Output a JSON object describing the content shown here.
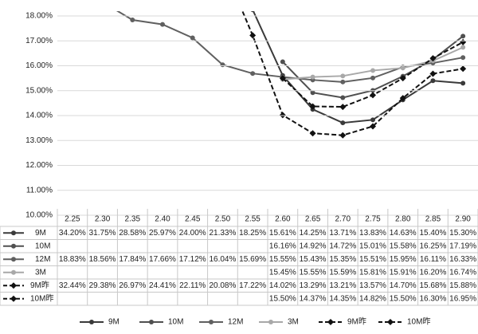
{
  "chart_data": {
    "type": "line",
    "categories": [
      "2.25",
      "2.30",
      "2.35",
      "2.40",
      "2.45",
      "2.50",
      "2.55",
      "2.60",
      "2.65",
      "2.70",
      "2.75",
      "2.80",
      "2.85",
      "2.90"
    ],
    "ylim": [
      10,
      18
    ],
    "yticks": [
      {
        "value": 10,
        "label": "10.00%"
      },
      {
        "value": 11,
        "label": "11.00%"
      },
      {
        "value": 12,
        "label": "12.00%"
      },
      {
        "value": 13,
        "label": "13.00%"
      },
      {
        "value": 14,
        "label": "14.00%"
      },
      {
        "value": 15,
        "label": "15.00%"
      },
      {
        "value": 16,
        "label": "16.00%"
      },
      {
        "value": 17,
        "label": "17.00%"
      },
      {
        "value": 18,
        "label": "18.00%"
      }
    ],
    "grid": true,
    "legend": "bottom",
    "series": [
      {
        "name": "9M",
        "color": "#3a3a3a",
        "dashed": false,
        "values": [
          34.2,
          31.75,
          28.58,
          25.97,
          24.0,
          21.33,
          18.25,
          15.61,
          14.25,
          13.71,
          13.83,
          14.63,
          15.4,
          15.3
        ],
        "value_labels": [
          "34.20%",
          "31.75%",
          "28.58%",
          "25.97%",
          "24.00%",
          "21.33%",
          "18.25%",
          "15.61%",
          "14.25%",
          "13.71%",
          "13.83%",
          "14.63%",
          "15.40%",
          "15.30%"
        ]
      },
      {
        "name": "10M",
        "color": "#505050",
        "dashed": false,
        "values": [
          null,
          null,
          null,
          null,
          null,
          null,
          null,
          16.16,
          14.92,
          14.72,
          15.01,
          15.58,
          16.25,
          17.19
        ],
        "value_labels": [
          null,
          null,
          null,
          null,
          null,
          null,
          null,
          "16.16%",
          "14.92%",
          "14.72%",
          "15.01%",
          "15.58%",
          "16.25%",
          "17.19%"
        ]
      },
      {
        "name": "12M",
        "color": "#606060",
        "dashed": false,
        "values": [
          18.83,
          18.56,
          17.84,
          17.66,
          17.12,
          16.04,
          15.69,
          15.55,
          15.43,
          15.35,
          15.51,
          15.95,
          16.11,
          16.33
        ],
        "value_labels": [
          "18.83%",
          "18.56%",
          "17.84%",
          "17.66%",
          "17.12%",
          "16.04%",
          "15.69%",
          "15.55%",
          "15.43%",
          "15.35%",
          "15.51%",
          "15.95%",
          "16.11%",
          "16.33%"
        ]
      },
      {
        "name": "3M",
        "color": "#a8a8a8",
        "dashed": false,
        "values": [
          null,
          null,
          null,
          null,
          null,
          null,
          null,
          15.45,
          15.55,
          15.59,
          15.81,
          15.91,
          16.2,
          16.74
        ],
        "value_labels": [
          null,
          null,
          null,
          null,
          null,
          null,
          null,
          "15.45%",
          "15.55%",
          "15.59%",
          "15.81%",
          "15.91%",
          "16.20%",
          "16.74%"
        ]
      },
      {
        "name": "9M昨",
        "color": "#111111",
        "dashed": true,
        "values": [
          32.44,
          29.38,
          26.97,
          24.41,
          22.11,
          20.08,
          17.22,
          14.02,
          13.29,
          13.21,
          13.57,
          14.7,
          15.68,
          15.88
        ],
        "value_labels": [
          "32.44%",
          "29.38%",
          "26.97%",
          "24.41%",
          "22.11%",
          "20.08%",
          "17.22%",
          "14.02%",
          "13.29%",
          "13.21%",
          "13.57%",
          "14.70%",
          "15.68%",
          "15.88%"
        ]
      },
      {
        "name": "10M昨",
        "color": "#111111",
        "dashed": true,
        "values": [
          null,
          null,
          null,
          null,
          null,
          null,
          null,
          15.5,
          14.37,
          14.35,
          14.82,
          15.5,
          16.3,
          16.95
        ],
        "value_labels": [
          null,
          null,
          null,
          null,
          null,
          null,
          null,
          "15.50%",
          "14.37%",
          "14.35%",
          "14.82%",
          "15.50%",
          "16.30%",
          "16.95%"
        ]
      }
    ]
  }
}
